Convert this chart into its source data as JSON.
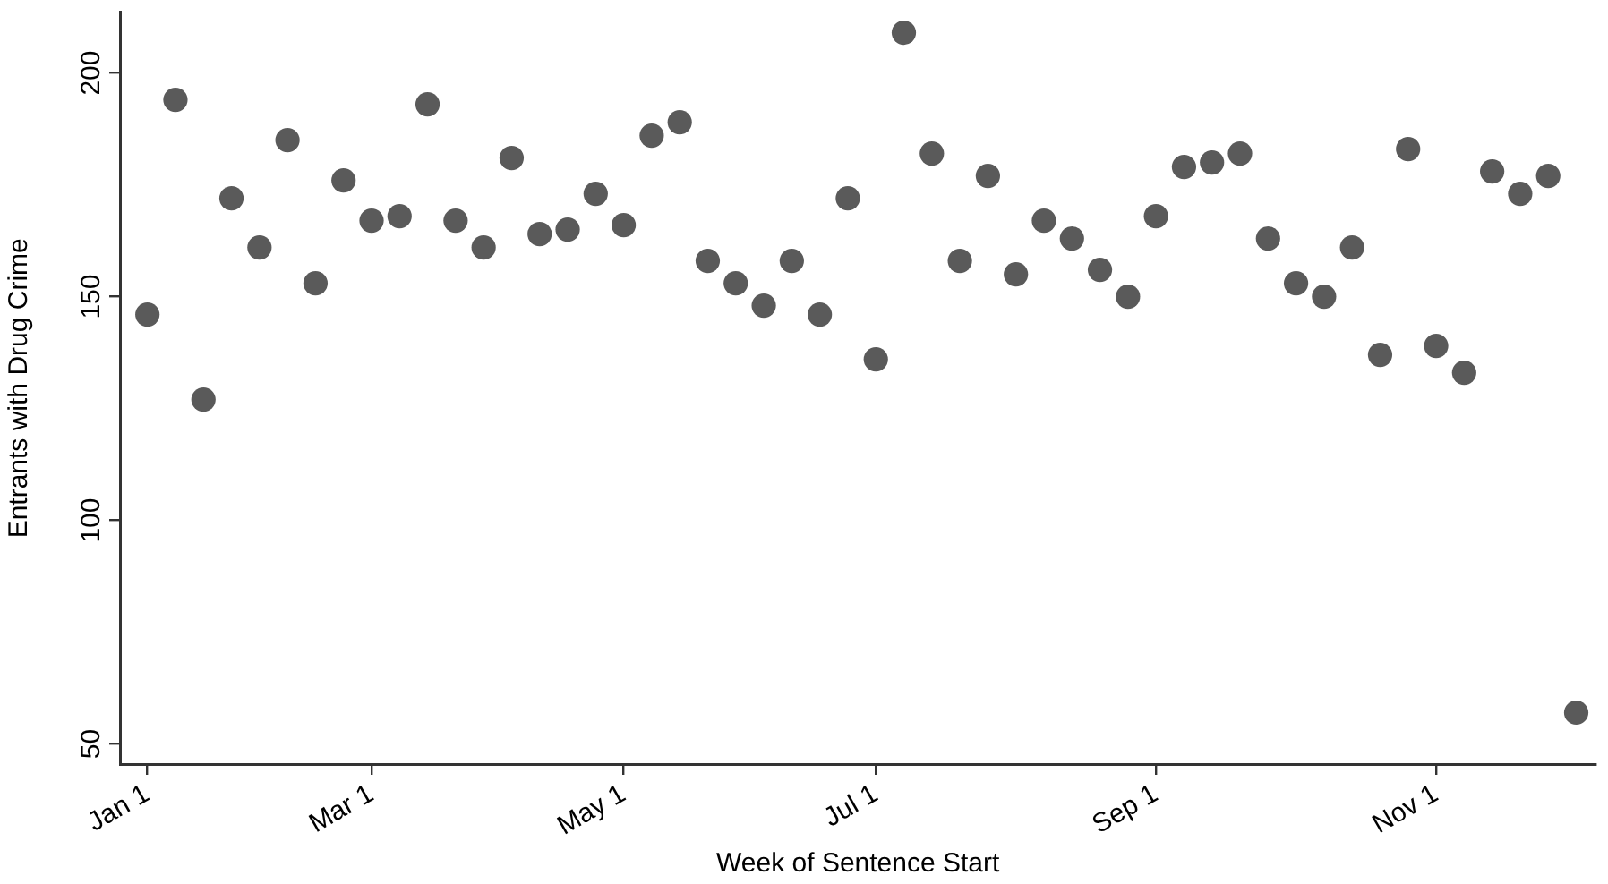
{
  "chart_data": {
    "type": "scatter",
    "xlabel": "Week of Sentence Start",
    "ylabel": "Entrants with Drug Crime",
    "marker": "circle",
    "legend": false,
    "categories": [
      "Jan 1",
      null,
      null,
      null,
      null,
      null,
      null,
      null,
      "Mar 1",
      null,
      null,
      null,
      null,
      null,
      null,
      null,
      null,
      "May 1",
      null,
      null,
      null,
      null,
      null,
      null,
      null,
      null,
      "Jul 1",
      null,
      null,
      null,
      null,
      null,
      null,
      null,
      null,
      null,
      "Sep 1",
      null,
      null,
      null,
      null,
      null,
      null,
      null,
      null,
      null,
      "Nov 1",
      null,
      null,
      null,
      null,
      null
    ],
    "series": [
      {
        "color": "#5a5a5a",
        "values": [
          146,
          194,
          127,
          172,
          161,
          185,
          153,
          176,
          167,
          168,
          193,
          167,
          161,
          181,
          164,
          165,
          173,
          166,
          186,
          189,
          158,
          153,
          148,
          158,
          146,
          172,
          136,
          209,
          182,
          158,
          177,
          155,
          167,
          163,
          156,
          150,
          168,
          179,
          180,
          182,
          163,
          153,
          150,
          161,
          137,
          183,
          139,
          133,
          178,
          173,
          177,
          57
        ]
      }
    ],
    "ylim": [
      45.5,
      213.6
    ],
    "yticks": [
      50,
      100,
      150,
      200
    ]
  }
}
